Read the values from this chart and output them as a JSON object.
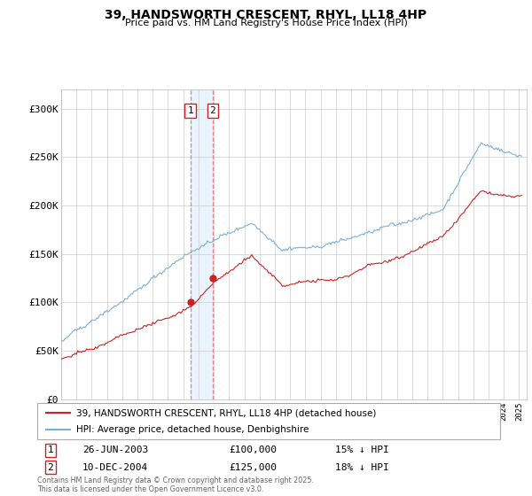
{
  "title": "39, HANDSWORTH CRESCENT, RHYL, LL18 4HP",
  "subtitle": "Price paid vs. HM Land Registry's House Price Index (HPI)",
  "hpi_color": "#7ab0d4",
  "price_color": "#cc2222",
  "vline_color": "#dd8888",
  "shade_color": "#ddeeff",
  "legend_line1": "39, HANDSWORTH CRESCENT, RHYL, LL18 4HP (detached house)",
  "legend_line2": "HPI: Average price, detached house, Denbighshire",
  "sale1_date": "26-JUN-2003",
  "sale1_price": "£100,000",
  "sale1_hpi": "15% ↓ HPI",
  "sale2_date": "10-DEC-2004",
  "sale2_price": "£125,000",
  "sale2_hpi": "18% ↓ HPI",
  "footer": "Contains HM Land Registry data © Crown copyright and database right 2025.\nThis data is licensed under the Open Government Licence v3.0.",
  "ylim": [
    0,
    320000
  ],
  "yticks": [
    0,
    50000,
    100000,
    150000,
    200000,
    250000,
    300000
  ],
  "ytick_labels": [
    "£0",
    "£50K",
    "£100K",
    "£150K",
    "£200K",
    "£250K",
    "£300K"
  ],
  "background_color": "#ffffff",
  "grid_color": "#cccccc",
  "sale1_x": 2003.46,
  "sale2_x": 2004.92
}
